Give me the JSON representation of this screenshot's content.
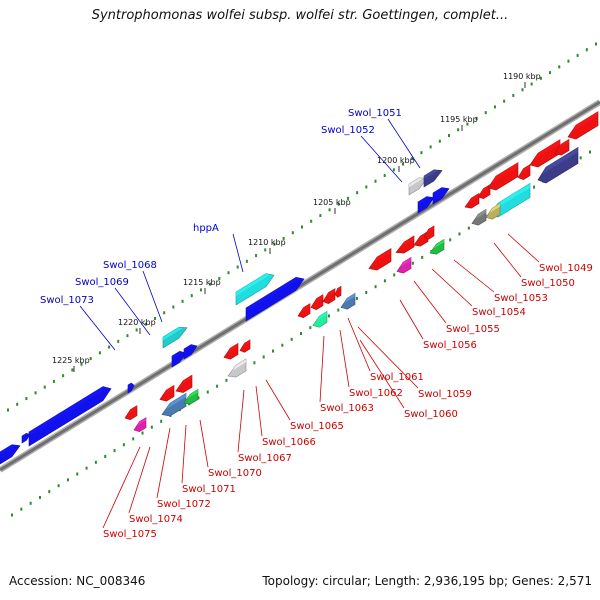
{
  "title": "Syntrophomonas wolfei subsp. wolfei str. Goettingen, complet...",
  "footer": {
    "accession": "Accession: NC_008346",
    "summary": "Topology: circular; Length: 2,936,195 bp; Genes: 2,571"
  },
  "colors": {
    "backbone": "#7a7a7a",
    "forward_label": "#0000cc",
    "reverse_label": "#cc0000",
    "dots": "#2e8b2e"
  },
  "kbp_ticks": [
    "1190 kbp",
    "1195 kbp",
    "1200 kbp",
    "1205 kbp",
    "1210 kbp",
    "1215 kbp",
    "1220 kbp",
    "1225 kbp"
  ],
  "forward_labels": [
    "Swol_1051",
    "Swol_1052",
    "hppA",
    "Swol_1068",
    "Swol_1069",
    "Swol_1073"
  ],
  "reverse_labels": [
    "Swol_1049",
    "Swol_1050",
    "Swol_1053",
    "Swol_1054",
    "Swol_1055",
    "Swol_1056",
    "Swol_1061",
    "Swol_1059",
    "Swol_1062",
    "Swol_1060",
    "Swol_1063",
    "Swol_1065",
    "Swol_1066",
    "Swol_1067",
    "Swol_1070",
    "Swol_1071",
    "Swol_1072",
    "Swol_1074",
    "Swol_1075"
  ]
}
